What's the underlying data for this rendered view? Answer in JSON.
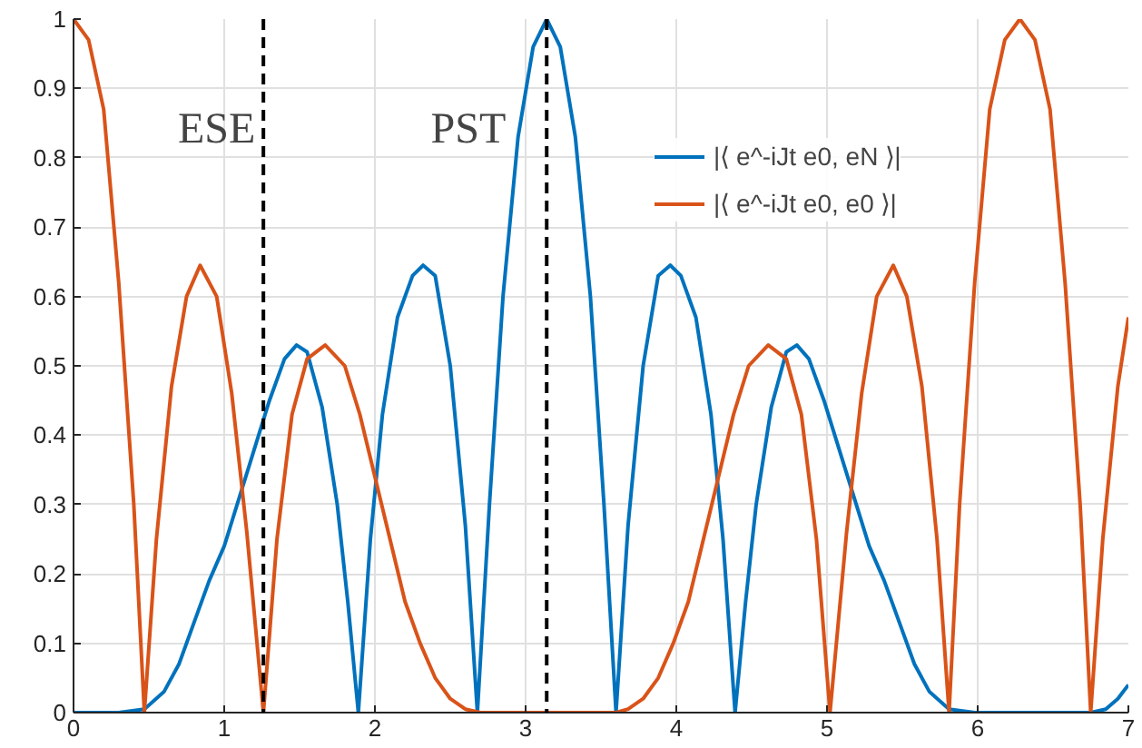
{
  "chart_data": {
    "type": "line",
    "xlim": [
      0,
      7
    ],
    "ylim": [
      0,
      1
    ],
    "xticks": [
      0,
      1,
      2,
      3,
      4,
      5,
      6,
      7
    ],
    "yticks": [
      0,
      0.1,
      0.2,
      0.3,
      0.4,
      0.5,
      0.6,
      0.7,
      0.8,
      0.9,
      1
    ],
    "grid": true,
    "legend": "top right",
    "line_style": "solid",
    "series": [
      {
        "name": "|⟨ e^-iJt e0, eN ⟩|",
        "color": "#0072bd",
        "x": [
          0,
          0.3,
          0.47,
          0.6,
          0.7,
          0.8,
          0.9,
          1.0,
          1.1,
          1.2,
          1.3,
          1.4,
          1.48,
          1.55,
          1.65,
          1.75,
          1.82,
          1.89,
          1.97,
          2.05,
          2.15,
          2.25,
          2.32,
          2.4,
          2.5,
          2.6,
          2.68,
          2.76,
          2.85,
          2.95,
          3.05,
          3.14,
          3.23,
          3.33,
          3.43,
          3.52,
          3.6,
          3.68,
          3.78,
          3.88,
          3.96,
          4.03,
          4.13,
          4.23,
          4.31,
          4.39,
          4.46,
          4.53,
          4.63,
          4.73,
          4.8,
          4.88,
          4.98,
          5.08,
          5.18,
          5.28,
          5.38,
          5.48,
          5.58,
          5.68,
          5.81,
          5.98,
          6.75,
          6.85,
          6.93,
          7.0
        ],
        "values": [
          0,
          0,
          0.005,
          0.03,
          0.07,
          0.13,
          0.19,
          0.24,
          0.31,
          0.38,
          0.45,
          0.51,
          0.53,
          0.52,
          0.44,
          0.3,
          0.16,
          0,
          0.25,
          0.43,
          0.57,
          0.63,
          0.645,
          0.63,
          0.5,
          0.27,
          0,
          0.3,
          0.6,
          0.83,
          0.96,
          1.0,
          0.96,
          0.83,
          0.6,
          0.3,
          0,
          0.27,
          0.5,
          0.63,
          0.645,
          0.63,
          0.57,
          0.43,
          0.25,
          0,
          0.16,
          0.3,
          0.44,
          0.52,
          0.53,
          0.51,
          0.45,
          0.38,
          0.31,
          0.24,
          0.19,
          0.13,
          0.07,
          0.03,
          0.005,
          0,
          0,
          0.005,
          0.02,
          0.04
        ]
      },
      {
        "name": "|⟨ e^-iJt e0, e0 ⟩|",
        "color": "#d95319",
        "x": [
          0,
          0.1,
          0.2,
          0.3,
          0.4,
          0.47,
          0.55,
          0.65,
          0.75,
          0.84,
          0.95,
          1.05,
          1.15,
          1.26,
          1.35,
          1.45,
          1.55,
          1.67,
          1.8,
          1.9,
          2.0,
          2.1,
          2.2,
          2.3,
          2.4,
          2.5,
          2.6,
          2.7,
          3.0,
          3.3,
          3.6,
          3.68,
          3.78,
          3.88,
          3.98,
          4.08,
          4.18,
          4.28,
          4.38,
          4.48,
          4.61,
          4.73,
          4.83,
          4.93,
          5.02,
          5.13,
          5.23,
          5.33,
          5.44,
          5.53,
          5.63,
          5.73,
          5.81,
          5.88,
          5.98,
          6.08,
          6.18,
          6.28,
          6.38,
          6.48,
          6.58,
          6.68,
          6.75,
          6.83,
          6.93,
          7.0
        ],
        "values": [
          1.0,
          0.97,
          0.87,
          0.62,
          0.3,
          0,
          0.25,
          0.47,
          0.6,
          0.645,
          0.6,
          0.46,
          0.26,
          0,
          0.25,
          0.43,
          0.51,
          0.53,
          0.5,
          0.43,
          0.34,
          0.25,
          0.16,
          0.1,
          0.05,
          0.02,
          0.005,
          0,
          0,
          0,
          0,
          0.005,
          0.02,
          0.05,
          0.1,
          0.16,
          0.25,
          0.34,
          0.43,
          0.5,
          0.53,
          0.51,
          0.43,
          0.25,
          0,
          0.26,
          0.46,
          0.6,
          0.645,
          0.6,
          0.47,
          0.25,
          0,
          0.3,
          0.62,
          0.87,
          0.97,
          1.0,
          0.97,
          0.87,
          0.62,
          0.3,
          0,
          0.25,
          0.47,
          0.57
        ]
      }
    ],
    "ref_lines": [
      {
        "axis": "x",
        "value": 1.26,
        "color": "#000000",
        "line_style": "dashed"
      },
      {
        "axis": "x",
        "value": 3.14,
        "color": "#000000",
        "line_style": "dashed"
      }
    ],
    "annotations": [
      "ESE",
      "PST"
    ]
  }
}
